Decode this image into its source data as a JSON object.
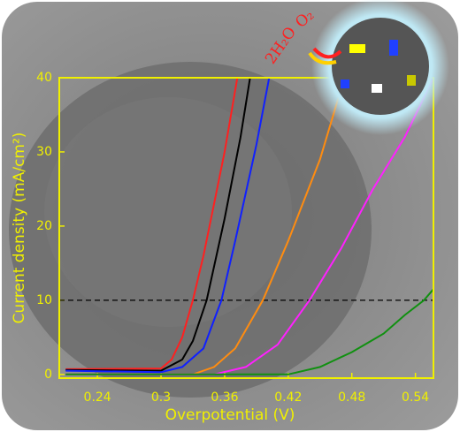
{
  "chart_data": {
    "type": "line",
    "xlabel": "Overpotential (V)",
    "ylabel": "Current density (mA/cm²)",
    "xlim": [
      0.204,
      0.557
    ],
    "ylim": [
      -0.5,
      40
    ],
    "xticks": [
      0.24,
      0.3,
      0.36,
      0.42,
      0.48,
      0.54
    ],
    "yticks": [
      0,
      10,
      20,
      30,
      40
    ],
    "hline": 10,
    "annotations": [
      "2H₂O",
      "O₂"
    ],
    "series": [
      {
        "color": "#ff2020",
        "x": [
          0.21,
          0.3,
          0.31,
          0.32,
          0.33,
          0.34,
          0.35,
          0.36,
          0.372
        ],
        "values": [
          0.7,
          0.8,
          2,
          5,
          10,
          16,
          23,
          30,
          40
        ]
      },
      {
        "color": "#000000",
        "x": [
          0.21,
          0.3,
          0.32,
          0.33,
          0.343,
          0.36,
          0.375,
          0.384
        ],
        "values": [
          0.6,
          0.5,
          2,
          4.5,
          10,
          21,
          32,
          40
        ]
      },
      {
        "color": "#1020ff",
        "x": [
          0.21,
          0.3,
          0.32,
          0.34,
          0.357,
          0.37,
          0.39,
          0.402
        ],
        "values": [
          0.5,
          0.3,
          1,
          3.5,
          10,
          18,
          31,
          40
        ]
      },
      {
        "color": "#ff8c10",
        "x": [
          0.21,
          0.33,
          0.35,
          0.37,
          0.396,
          0.42,
          0.45,
          0.473
        ],
        "values": [
          0,
          0,
          1,
          3.5,
          10,
          18,
          29,
          40
        ]
      },
      {
        "color": "#ff20ff",
        "x": [
          0.21,
          0.35,
          0.38,
          0.41,
          0.44,
          0.47,
          0.5,
          0.53,
          0.557
        ],
        "values": [
          0,
          0,
          1,
          4,
          10,
          17,
          25,
          32,
          40
        ]
      },
      {
        "color": "#109010",
        "x": [
          0.21,
          0.42,
          0.45,
          0.48,
          0.51,
          0.53,
          0.548,
          0.557
        ],
        "values": [
          0,
          0,
          1,
          3,
          5.5,
          8,
          10,
          11.5
        ]
      }
    ]
  }
}
